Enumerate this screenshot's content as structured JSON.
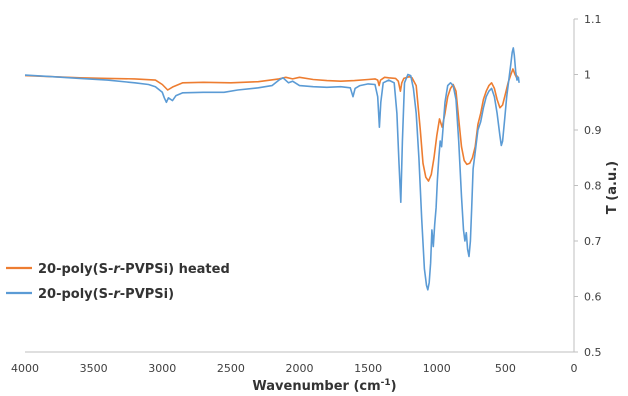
{
  "chart_data": {
    "type": "line",
    "xlabel_prefix": "Wavenumber (cm",
    "xlabel_sup": "-1",
    "xlabel_suffix": ")",
    "ylabel": "T (a.u.)",
    "xlim": [
      0,
      4000
    ],
    "x_reversed": true,
    "ylim": [
      0.5,
      1.1
    ],
    "y_axis_position": "right",
    "x_ticks": [
      "4000",
      "3500",
      "3000",
      "2500",
      "2000",
      "1500",
      "1000",
      "500",
      "0"
    ],
    "y_ticks": [
      "0.5",
      "0.6",
      "0.7",
      "0.8",
      "0.9",
      "1",
      "1.1"
    ],
    "grid": false,
    "legend_position": "bottom-left",
    "series": [
      {
        "name_prefix": "20-poly(S-",
        "name_italic": "r",
        "name_suffix": "-PVPSi) heated",
        "color": "#ED7D31",
        "points": [
          [
            4000,
            0.998
          ],
          [
            3800,
            0.996
          ],
          [
            3600,
            0.994
          ],
          [
            3400,
            0.993
          ],
          [
            3200,
            0.992
          ],
          [
            3050,
            0.99
          ],
          [
            3000,
            0.982
          ],
          [
            2960,
            0.972
          ],
          [
            2920,
            0.978
          ],
          [
            2850,
            0.985
          ],
          [
            2700,
            0.986
          ],
          [
            2500,
            0.985
          ],
          [
            2300,
            0.987
          ],
          [
            2150,
            0.992
          ],
          [
            2100,
            0.995
          ],
          [
            2050,
            0.992
          ],
          [
            2000,
            0.995
          ],
          [
            1900,
            0.991
          ],
          [
            1800,
            0.989
          ],
          [
            1700,
            0.988
          ],
          [
            1600,
            0.989
          ],
          [
            1500,
            0.991
          ],
          [
            1450,
            0.992
          ],
          [
            1430,
            0.99
          ],
          [
            1420,
            0.98
          ],
          [
            1410,
            0.99
          ],
          [
            1380,
            0.995
          ],
          [
            1350,
            0.994
          ],
          [
            1300,
            0.993
          ],
          [
            1280,
            0.988
          ],
          [
            1265,
            0.97
          ],
          [
            1255,
            0.985
          ],
          [
            1240,
            0.993
          ],
          [
            1200,
            0.996
          ],
          [
            1180,
            0.994
          ],
          [
            1150,
            0.98
          ],
          [
            1120,
            0.9
          ],
          [
            1100,
            0.84
          ],
          [
            1080,
            0.815
          ],
          [
            1060,
            0.808
          ],
          [
            1040,
            0.82
          ],
          [
            1020,
            0.85
          ],
          [
            1000,
            0.89
          ],
          [
            980,
            0.92
          ],
          [
            960,
            0.905
          ],
          [
            940,
            0.93
          ],
          [
            920,
            0.96
          ],
          [
            900,
            0.975
          ],
          [
            880,
            0.982
          ],
          [
            860,
            0.97
          ],
          [
            840,
            0.92
          ],
          [
            820,
            0.87
          ],
          [
            800,
            0.845
          ],
          [
            780,
            0.838
          ],
          [
            760,
            0.84
          ],
          [
            740,
            0.85
          ],
          [
            720,
            0.87
          ],
          [
            700,
            0.91
          ],
          [
            680,
            0.93
          ],
          [
            660,
            0.955
          ],
          [
            640,
            0.97
          ],
          [
            620,
            0.98
          ],
          [
            600,
            0.985
          ],
          [
            580,
            0.975
          ],
          [
            560,
            0.955
          ],
          [
            540,
            0.94
          ],
          [
            520,
            0.945
          ],
          [
            500,
            0.965
          ],
          [
            480,
            0.985
          ],
          [
            460,
            1.0
          ],
          [
            445,
            1.01
          ],
          [
            430,
            1.0
          ],
          [
            420,
            0.995
          ],
          [
            410,
            0.998
          ]
        ]
      },
      {
        "name_prefix": "20-poly(S-",
        "name_italic": "r",
        "name_suffix": "-PVPSi)",
        "color": "#5B9BD5",
        "points": [
          [
            4000,
            0.999
          ],
          [
            3800,
            0.996
          ],
          [
            3600,
            0.993
          ],
          [
            3400,
            0.99
          ],
          [
            3200,
            0.985
          ],
          [
            3100,
            0.982
          ],
          [
            3050,
            0.978
          ],
          [
            3000,
            0.968
          ],
          [
            2985,
            0.958
          ],
          [
            2970,
            0.95
          ],
          [
            2955,
            0.958
          ],
          [
            2925,
            0.953
          ],
          [
            2900,
            0.962
          ],
          [
            2850,
            0.967
          ],
          [
            2700,
            0.968
          ],
          [
            2550,
            0.968
          ],
          [
            2450,
            0.972
          ],
          [
            2300,
            0.976
          ],
          [
            2200,
            0.98
          ],
          [
            2150,
            0.99
          ],
          [
            2120,
            0.994
          ],
          [
            2080,
            0.985
          ],
          [
            2050,
            0.988
          ],
          [
            2000,
            0.98
          ],
          [
            1900,
            0.978
          ],
          [
            1800,
            0.977
          ],
          [
            1700,
            0.978
          ],
          [
            1630,
            0.976
          ],
          [
            1610,
            0.96
          ],
          [
            1595,
            0.975
          ],
          [
            1560,
            0.98
          ],
          [
            1500,
            0.983
          ],
          [
            1450,
            0.982
          ],
          [
            1430,
            0.96
          ],
          [
            1418,
            0.905
          ],
          [
            1408,
            0.95
          ],
          [
            1390,
            0.985
          ],
          [
            1350,
            0.99
          ],
          [
            1310,
            0.985
          ],
          [
            1290,
            0.93
          ],
          [
            1275,
            0.84
          ],
          [
            1262,
            0.77
          ],
          [
            1250,
            0.88
          ],
          [
            1235,
            0.985
          ],
          [
            1210,
            1.0
          ],
          [
            1190,
            0.998
          ],
          [
            1170,
            0.975
          ],
          [
            1150,
            0.93
          ],
          [
            1130,
            0.85
          ],
          [
            1110,
            0.74
          ],
          [
            1090,
            0.65
          ],
          [
            1075,
            0.62
          ],
          [
            1065,
            0.612
          ],
          [
            1055,
            0.625
          ],
          [
            1045,
            0.66
          ],
          [
            1035,
            0.72
          ],
          [
            1025,
            0.69
          ],
          [
            1015,
            0.73
          ],
          [
            1005,
            0.76
          ],
          [
            995,
            0.81
          ],
          [
            985,
            0.85
          ],
          [
            975,
            0.88
          ],
          [
            965,
            0.87
          ],
          [
            955,
            0.9
          ],
          [
            940,
            0.95
          ],
          [
            920,
            0.98
          ],
          [
            900,
            0.985
          ],
          [
            880,
            0.98
          ],
          [
            860,
            0.955
          ],
          [
            840,
            0.88
          ],
          [
            820,
            0.78
          ],
          [
            805,
            0.72
          ],
          [
            795,
            0.7
          ],
          [
            785,
            0.715
          ],
          [
            775,
            0.685
          ],
          [
            765,
            0.672
          ],
          [
            755,
            0.7
          ],
          [
            745,
            0.76
          ],
          [
            735,
            0.83
          ],
          [
            720,
            0.86
          ],
          [
            700,
            0.9
          ],
          [
            680,
            0.915
          ],
          [
            660,
            0.94
          ],
          [
            640,
            0.96
          ],
          [
            620,
            0.97
          ],
          [
            600,
            0.975
          ],
          [
            580,
            0.96
          ],
          [
            560,
            0.93
          ],
          [
            540,
            0.89
          ],
          [
            530,
            0.872
          ],
          [
            520,
            0.88
          ],
          [
            505,
            0.92
          ],
          [
            490,
            0.96
          ],
          [
            475,
            0.99
          ],
          [
            460,
            1.02
          ],
          [
            450,
            1.04
          ],
          [
            442,
            1.048
          ],
          [
            435,
            1.035
          ],
          [
            425,
            1.005
          ],
          [
            415,
            0.99
          ],
          [
            405,
            0.995
          ],
          [
            400,
            0.985
          ]
        ]
      }
    ]
  }
}
